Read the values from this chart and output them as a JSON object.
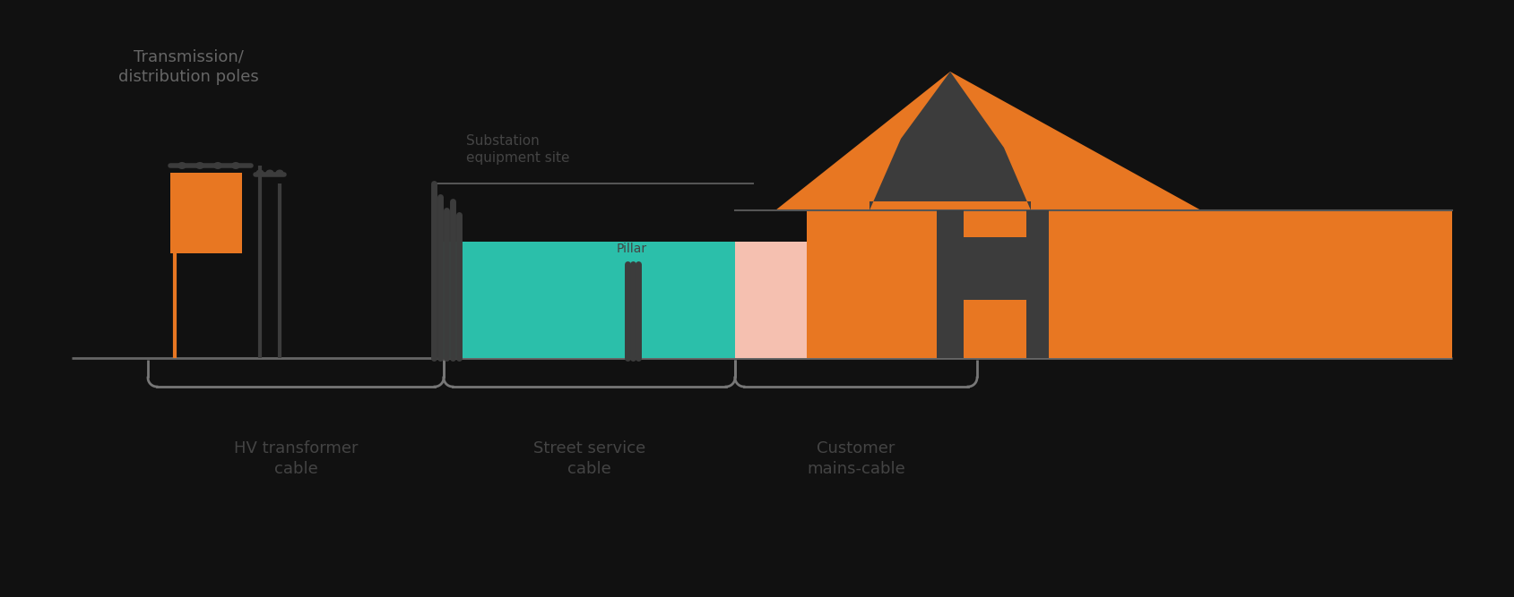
{
  "bg_color": "#111111",
  "orange": "#E87722",
  "teal": "#2BBFAA",
  "dark_gray": "#3C3C3C",
  "light_pink": "#F5C0B0",
  "line_gray": "#777777",
  "text_dark": "#444444",
  "label_transmission": "Transmission/\ndistribution poles",
  "label_hv": "HV transformer\ncable",
  "label_street": "Street service\ncable",
  "label_customer": "Customer\nmains-cable",
  "label_substation": "Substation\nequipment site",
  "label_pillar": "Pillar",
  "fig_w": 16.9,
  "fig_h": 6.67,
  "dpi": 100
}
